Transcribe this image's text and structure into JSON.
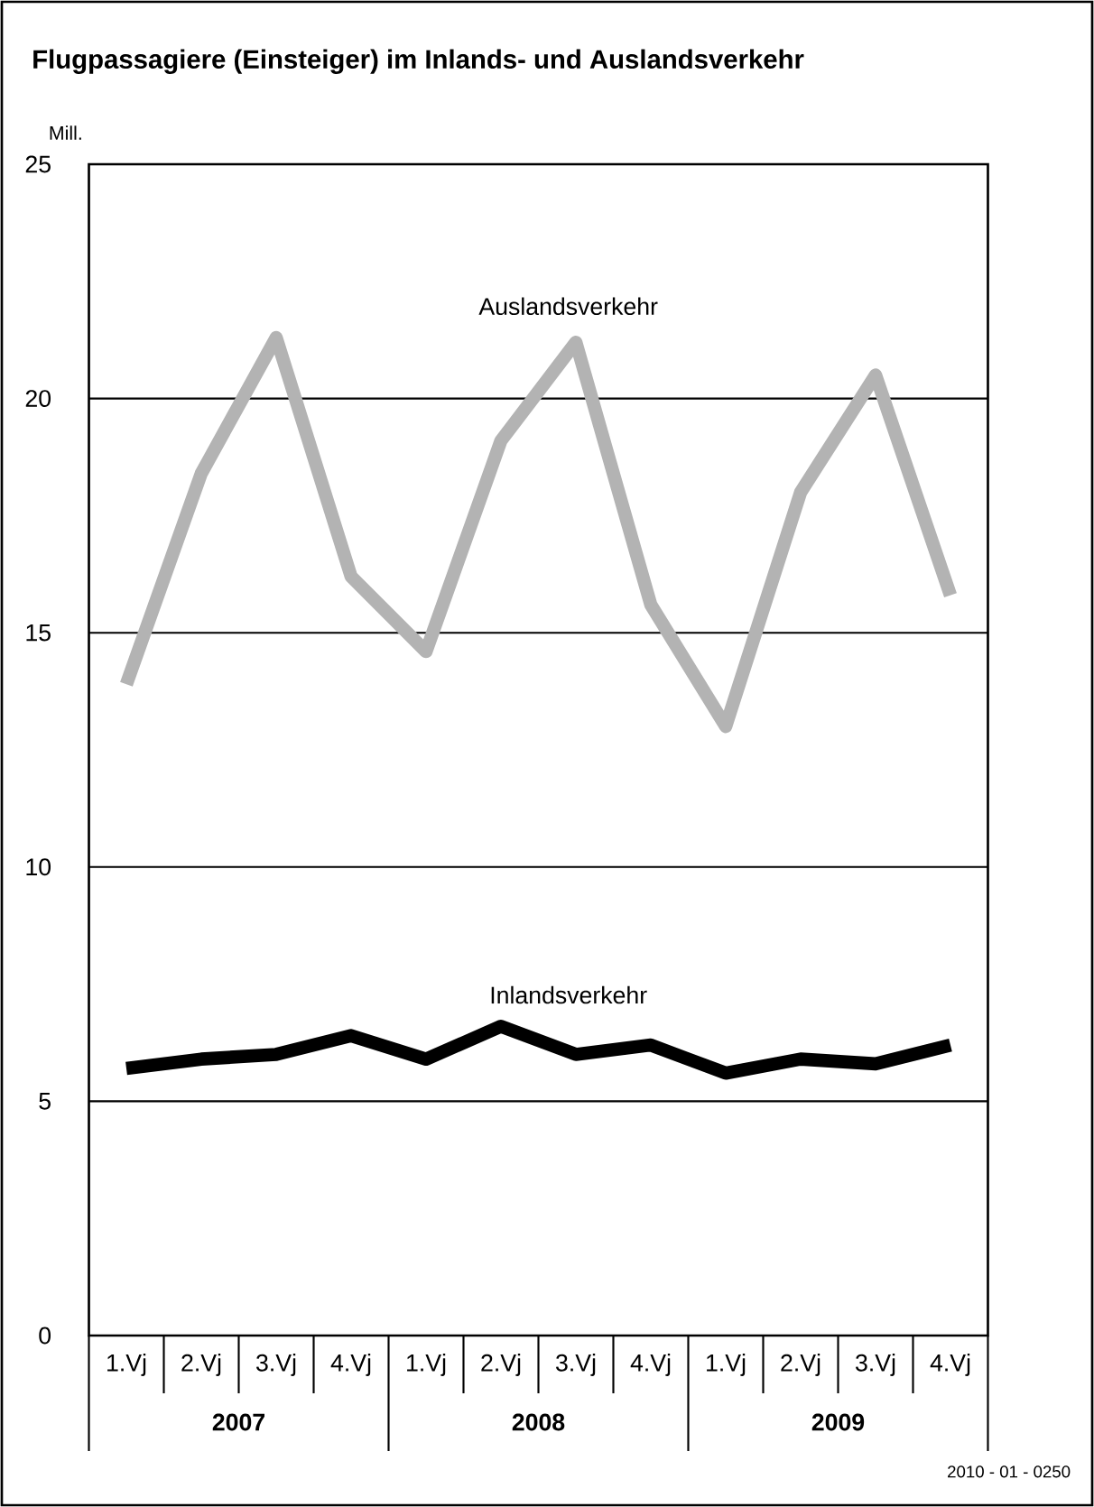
{
  "chart_data": {
    "type": "line",
    "title": "Flugpassagiere (Einsteiger) im Inlands- und Auslandsverkehr",
    "ylabel": "Mill.",
    "categories": [
      "1.Vj",
      "2.Vj",
      "3.Vj",
      "4.Vj",
      "1.Vj",
      "2.Vj",
      "3.Vj",
      "4.Vj",
      "1.Vj",
      "2.Vj",
      "3.Vj",
      "4.Vj"
    ],
    "series": [
      {
        "name": "Auslandsverkehr",
        "color": "#b3b3b3",
        "values": [
          13.9,
          18.4,
          21.3,
          16.2,
          14.6,
          19.1,
          21.2,
          15.6,
          13.0,
          18.0,
          20.5,
          15.8
        ]
      },
      {
        "name": "Inlandsverkehr",
        "color": "#000000",
        "values": [
          5.7,
          5.9,
          6.0,
          6.4,
          5.9,
          6.6,
          6.0,
          6.2,
          5.6,
          5.9,
          5.8,
          6.2
        ]
      }
    ],
    "ylim": [
      0,
      25
    ],
    "yticks": [
      0,
      5,
      10,
      15,
      20,
      25
    ],
    "grid": "y",
    "annotations": [
      "2007",
      "2008",
      "2009",
      "2010 - 01 - 0250"
    ]
  }
}
